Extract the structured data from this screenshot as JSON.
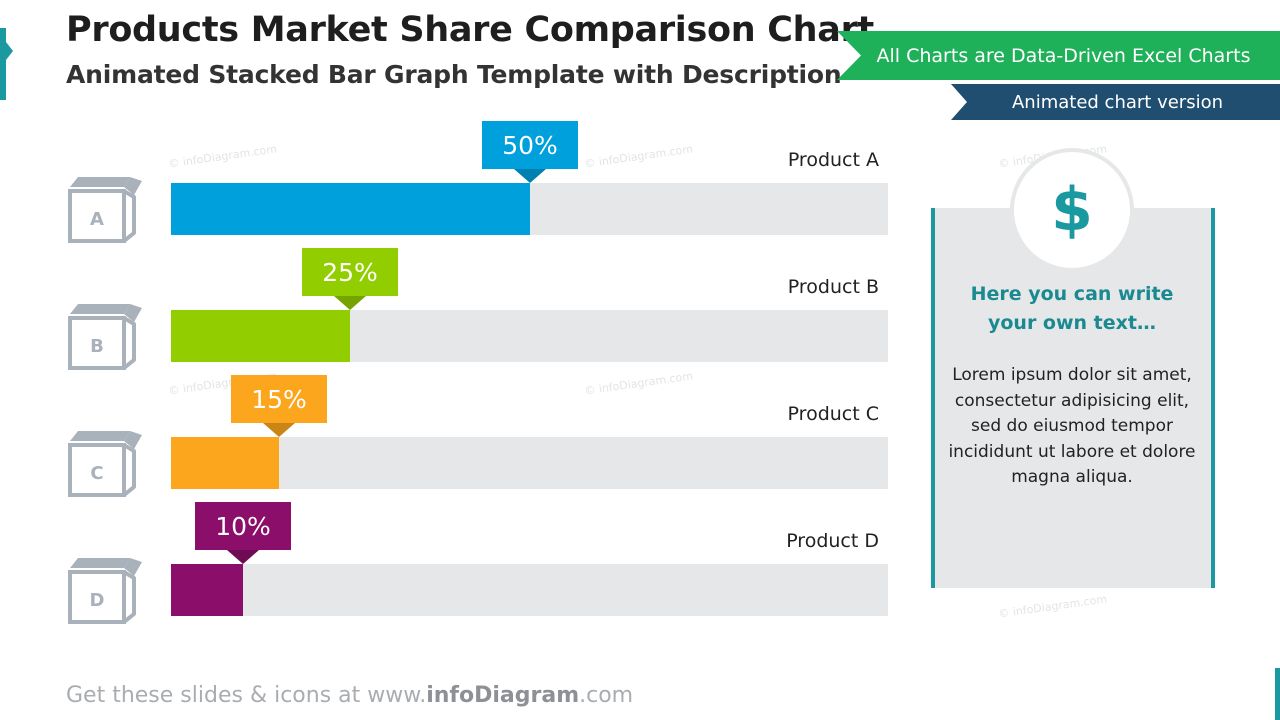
{
  "header": {
    "title": "Products Market Share Comparison Chart",
    "subtitle": "Animated Stacked Bar Graph Template with Description"
  },
  "ribbons": {
    "green_label": "All Charts are Data-Driven Excel Charts",
    "blue_label": "Animated chart version"
  },
  "watermark_text": "© infoDiagram.com",
  "colors": {
    "accent": "#1a9aa0",
    "track": "#e5e7e9",
    "icon": "#a9b1bb",
    "green_ribbon": "#1fb05a",
    "blue_ribbon": "#1f4e70"
  },
  "chart_data": {
    "type": "bar",
    "orientation": "horizontal",
    "categories": [
      "Product A",
      "Product B",
      "Product C",
      "Product D"
    ],
    "box_letters": [
      "A",
      "B",
      "C",
      "D"
    ],
    "values": [
      50,
      25,
      15,
      10
    ],
    "value_labels": [
      "50%",
      "25%",
      "15%",
      "10%"
    ],
    "colors": [
      "#00a0dc",
      "#92cd00",
      "#fba61c",
      "#8b0e6a"
    ],
    "xlim": [
      0,
      100
    ],
    "title": "",
    "xlabel": "",
    "ylabel": ""
  },
  "side_panel": {
    "icon": "dollar-icon",
    "icon_glyph": "$",
    "heading": "Here you can write your own text…",
    "body": "Lorem ipsum dolor sit amet, consectetur adipisicing elit, sed do eiusmod tempor incididunt ut labore et dolore magna aliqua."
  },
  "footer": {
    "prefix": "Get these slides & icons at www.",
    "brand": "infoDiagram",
    "suffix": ".com"
  }
}
